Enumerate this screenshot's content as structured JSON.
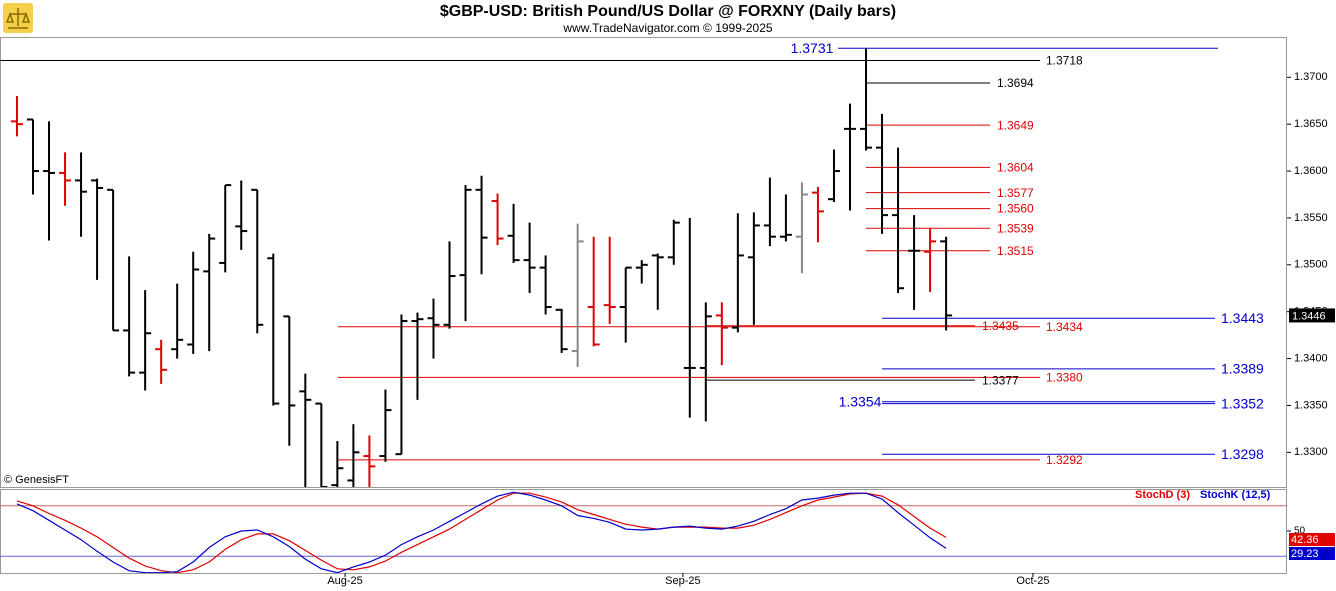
{
  "chart_data": [
    {
      "type": "ohlc",
      "title": "$GBP-USD:  British Pound/US Dollar @ FORXNY  (Daily bars)",
      "subtitle": "www.TradeNavigator.com © 1999-2025",
      "annotation": "© GenesisFT",
      "x": [
        0,
        1,
        2,
        3,
        4,
        5,
        6,
        7,
        8,
        9,
        10,
        11,
        12,
        13,
        14,
        15,
        16,
        17,
        18,
        19,
        20,
        21,
        22,
        23,
        24,
        25,
        26,
        27,
        28,
        29,
        30,
        31,
        32,
        33,
        34,
        35,
        36,
        37,
        38,
        39,
        40,
        41,
        42,
        43,
        44,
        45,
        46,
        47,
        48,
        49,
        50,
        51,
        52,
        53,
        54,
        55,
        56,
        57,
        58
      ],
      "open": [
        1.3653,
        1.3655,
        1.36,
        1.3598,
        1.359,
        1.359,
        1.358,
        1.343,
        1.3385,
        1.341,
        1.341,
        1.3415,
        1.3493,
        1.3502,
        1.3541,
        1.358,
        1.3507,
        1.3445,
        1.3365,
        1.3352,
        1.3265,
        1.327,
        1.3296,
        1.3296,
        1.3298,
        1.344,
        1.3443,
        1.3436,
        1.3489,
        1.358,
        1.3568,
        1.3531,
        1.3505,
        1.3497,
        1.3452,
        1.3408,
        1.3455,
        1.3457,
        1.3455,
        1.3497,
        1.351,
        1.3508,
        1.339,
        1.339,
        1.3446,
        1.3433,
        1.3508,
        1.3542,
        1.353,
        1.353,
        1.3577,
        1.357,
        1.3645,
        1.3645,
        1.3625,
        1.3553,
        1.3515,
        1.3514,
        1.3525
      ],
      "high": [
        1.368,
        1.3655,
        1.3653,
        1.362,
        1.362,
        1.3592,
        1.358,
        1.3509,
        1.3473,
        1.342,
        1.348,
        1.3514,
        1.3533,
        1.3585,
        1.359,
        1.358,
        1.3512,
        1.3445,
        1.3384,
        1.3352,
        1.3312,
        1.333,
        1.3318,
        1.3367,
        1.3447,
        1.3449,
        1.3464,
        1.3525,
        1.3585,
        1.3595,
        1.3576,
        1.3565,
        1.3545,
        1.351,
        1.3453,
        1.3544,
        1.353,
        1.353,
        1.3497,
        1.3505,
        1.3512,
        1.3548,
        1.355,
        1.346,
        1.346,
        1.3555,
        1.3556,
        1.3593,
        1.3575,
        1.3588,
        1.3583,
        1.3623,
        1.3672,
        1.3731,
        1.3661,
        1.3625,
        1.3553,
        1.3539,
        1.353
      ],
      "low": [
        1.3637,
        1.3575,
        1.3526,
        1.3563,
        1.353,
        1.3484,
        1.343,
        1.3381,
        1.3366,
        1.3373,
        1.34,
        1.3405,
        1.3408,
        1.3492,
        1.3516,
        1.3427,
        1.335,
        1.3307,
        1.3263,
        1.3263,
        1.3263,
        1.3263,
        1.3263,
        1.329,
        1.3298,
        1.3356,
        1.34,
        1.3432,
        1.344,
        1.349,
        1.3521,
        1.3502,
        1.347,
        1.3447,
        1.3406,
        1.3391,
        1.3413,
        1.3437,
        1.3417,
        1.348,
        1.3452,
        1.35,
        1.3337,
        1.3333,
        1.3393,
        1.3428,
        1.3436,
        1.352,
        1.3525,
        1.3491,
        1.3524,
        1.3567,
        1.3558,
        1.3622,
        1.3533,
        1.347,
        1.3452,
        1.3471,
        1.343
      ],
      "close": [
        1.365,
        1.36,
        1.3598,
        1.359,
        1.3578,
        1.3582,
        1.343,
        1.3385,
        1.3427,
        1.3388,
        1.342,
        1.3495,
        1.3528,
        1.3585,
        1.3536,
        1.3436,
        1.3352,
        1.335,
        1.3356,
        1.3263,
        1.3283,
        1.33,
        1.3285,
        1.3345,
        1.344,
        1.3442,
        1.3436,
        1.3488,
        1.358,
        1.3529,
        1.3528,
        1.3505,
        1.3497,
        1.3455,
        1.341,
        1.3525,
        1.3415,
        1.3455,
        1.3497,
        1.35,
        1.3508,
        1.3545,
        1.339,
        1.3445,
        1.3433,
        1.351,
        1.3542,
        1.353,
        1.3532,
        1.3575,
        1.3557,
        1.36,
        1.3645,
        1.3625,
        1.3553,
        1.3475,
        1.3515,
        1.3525,
        1.3446
      ],
      "colors": [
        "#e00000",
        "#000000",
        "#000000",
        "#e00000",
        "#000000",
        "#000000",
        "#000000",
        "#000000",
        "#000000",
        "#e00000",
        "#000000",
        "#000000",
        "#000000",
        "#000000",
        "#000000",
        "#000000",
        "#000000",
        "#000000",
        "#000000",
        "#000000",
        "#000000",
        "#000000",
        "#e00000",
        "#000000",
        "#000000",
        "#000000",
        "#000000",
        "#000000",
        "#000000",
        "#000000",
        "#e00000",
        "#000000",
        "#000000",
        "#000000",
        "#000000",
        "#888888",
        "#e00000",
        "#e00000",
        "#000000",
        "#000000",
        "#000000",
        "#000000",
        "#000000",
        "#000000",
        "#e00000",
        "#000000",
        "#000000",
        "#000000",
        "#000000",
        "#888888",
        "#e00000",
        "#000000",
        "#000000",
        "#000000",
        "#000000",
        "#000000",
        "#000000",
        "#e00000",
        "#000000"
      ],
      "xlim": [
        -1.06,
        79.28
      ],
      "ylim": [
        1.3263,
        1.3743
      ],
      "yticks": [
        {
          "value": 1.33,
          "label": "1.3300"
        },
        {
          "value": 1.335,
          "label": "1.3350"
        },
        {
          "value": 1.34,
          "label": "1.3400"
        },
        {
          "value": 1.345,
          "label": "1.3450"
        },
        {
          "value": 1.35,
          "label": "1.3500"
        },
        {
          "value": 1.355,
          "label": "1.3550"
        },
        {
          "value": 1.36,
          "label": "1.3600"
        },
        {
          "value": 1.365,
          "label": "1.3650"
        },
        {
          "value": 1.37,
          "label": "1.3700"
        }
      ],
      "levels": [
        {
          "value": 1.3731,
          "label": "1.3731",
          "color": "#0000cc"
        },
        {
          "value": 1.3718,
          "label": "1.3718",
          "color": "#000000"
        },
        {
          "value": 1.3694,
          "label": "1.3694",
          "color": "#000000"
        },
        {
          "value": 1.3649,
          "label": "1.3649",
          "color": "#e00000"
        },
        {
          "value": 1.3604,
          "label": "1.3604",
          "color": "#e00000"
        },
        {
          "value": 1.3577,
          "label": "1.3577",
          "color": "#e00000"
        },
        {
          "value": 1.356,
          "label": "1.3560",
          "color": "#e00000"
        },
        {
          "value": 1.3539,
          "label": "1.3539",
          "color": "#e00000"
        },
        {
          "value": 1.3515,
          "label": "1.3515",
          "color": "#e00000"
        },
        {
          "value": 1.3443,
          "label": "1.3443",
          "color": "#0000cc"
        },
        {
          "value": 1.3435,
          "label": "1.3435",
          "color": "#e00000"
        },
        {
          "value": 1.3434,
          "label": "1.3434",
          "color": "#e00000"
        },
        {
          "value": 1.3389,
          "label": "1.3389",
          "color": "#0000cc"
        },
        {
          "value": 1.338,
          "label": "1.3380",
          "color": "#e00000"
        },
        {
          "value": 1.3377,
          "label": "1.3377",
          "color": "#000000"
        },
        {
          "value": 1.3354,
          "label": "1.3354",
          "color": "#0000cc"
        },
        {
          "value": 1.3352,
          "label": "1.3352",
          "color": "#0000cc"
        },
        {
          "value": 1.3298,
          "label": "1.3298",
          "color": "#0000cc"
        },
        {
          "value": 1.3292,
          "label": "1.3292",
          "color": "#e00000"
        }
      ]
    },
    {
      "type": "line",
      "x": [
        0,
        1,
        2,
        3,
        4,
        5,
        6,
        7,
        8,
        9,
        10,
        11,
        12,
        13,
        14,
        15,
        16,
        17,
        18,
        19,
        20,
        21,
        22,
        23,
        24,
        25,
        26,
        27,
        28,
        29,
        30,
        31,
        32,
        33,
        34,
        35,
        36,
        37,
        38,
        39,
        40,
        41,
        42,
        43,
        44,
        45,
        46,
        47,
        48,
        49,
        50,
        51,
        52,
        53,
        54,
        55,
        56,
        57,
        58
      ],
      "xlim": [
        -1.06,
        79.28
      ],
      "xticks": [
        {
          "value": 20.48,
          "label": "Aug-25"
        },
        {
          "value": 41.57,
          "label": "Sep-25"
        },
        {
          "value": 63.42,
          "label": "Oct-25"
        }
      ],
      "ylim": [
        0,
        100
      ],
      "yticks": [
        50
      ],
      "bands": [
        20,
        80
      ],
      "series": [
        {
          "name": "StochD (3)",
          "color": "#e00000",
          "values": [
            85.8,
            80.0,
            70.8,
            62.7,
            53.5,
            43.1,
            30.4,
            17.7,
            8.5,
            2.7,
            0.4,
            3.8,
            13.1,
            28.1,
            39.6,
            46.5,
            46.5,
            38.5,
            26.9,
            15.4,
            5.0,
            3.8,
            7.3,
            14.2,
            24.6,
            33.8,
            43.1,
            52.3,
            63.8,
            75.4,
            86.9,
            95.0,
            95.0,
            90.4,
            84.6,
            75.4,
            69.6,
            63.8,
            58.1,
            54.6,
            52.3,
            54.6,
            54.6,
            54.6,
            53.5,
            53.5,
            56.9,
            63.8,
            71.9,
            80.0,
            86.9,
            90.4,
            94.2,
            95.0,
            91.5,
            81.2,
            67.3,
            53.5,
            42.36
          ]
        },
        {
          "name": "StochK (12,5)",
          "color": "#0000cc",
          "values": [
            82.3,
            74.2,
            62.7,
            51.2,
            39.6,
            25.8,
            13.1,
            2.7,
            0.4,
            0.4,
            1.5,
            13.1,
            30.4,
            43.1,
            50.0,
            51.2,
            43.1,
            31.5,
            16.5,
            5.0,
            0.4,
            7.3,
            13.1,
            21.2,
            33.8,
            43.1,
            51.2,
            61.5,
            71.9,
            82.3,
            91.5,
            96.2,
            92.7,
            86.9,
            80.0,
            68.5,
            65.0,
            60.4,
            52.3,
            51.2,
            52.3,
            54.6,
            55.8,
            53.5,
            52.3,
            55.8,
            61.5,
            69.6,
            76.5,
            86.9,
            89.2,
            92.7,
            95.0,
            95.0,
            88.1,
            71.9,
            56.9,
            41.9,
            29.23
          ]
        }
      ]
    }
  ]
}
